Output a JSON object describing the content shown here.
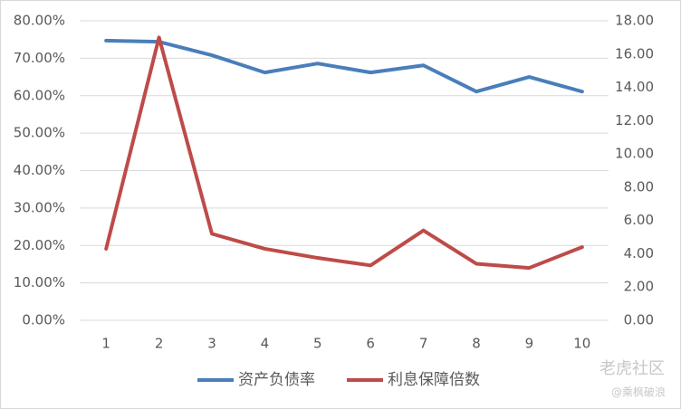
{
  "chart_data": {
    "type": "line",
    "categories": [
      "1",
      "2",
      "3",
      "4",
      "5",
      "6",
      "7",
      "8",
      "9",
      "10"
    ],
    "series": [
      {
        "name": "资产负债率",
        "color": "#4a7ebb",
        "values": [
          74.7,
          74.4,
          70.8,
          66.2,
          68.6,
          66.2,
          68.1,
          61.1,
          65.0,
          61.1
        ]
      },
      {
        "name": "利息保障倍数",
        "color": "#be4b48",
        "axis": "y2",
        "values": [
          4.3,
          17.0,
          5.2,
          4.3,
          3.75,
          3.3,
          5.4,
          3.4,
          3.15,
          4.4
        ]
      }
    ],
    "ylim": [
      0,
      80
    ],
    "yticks": [
      {
        "value": 0,
        "label": "0.00%"
      },
      {
        "value": 10,
        "label": "10.00%"
      },
      {
        "value": 20,
        "label": "20.00%"
      },
      {
        "value": 30,
        "label": "30.00%"
      },
      {
        "value": 40,
        "label": "40.00%"
      },
      {
        "value": 50,
        "label": "50.00%"
      },
      {
        "value": 60,
        "label": "60.00%"
      },
      {
        "value": 70,
        "label": "70.00%"
      },
      {
        "value": 80,
        "label": "80.00%"
      }
    ],
    "y2lim": [
      0,
      18
    ],
    "y2ticks": [
      {
        "value": 0,
        "label": "0.00"
      },
      {
        "value": 2,
        "label": "2.00"
      },
      {
        "value": 4,
        "label": "4.00"
      },
      {
        "value": 6,
        "label": "6.00"
      },
      {
        "value": 8,
        "label": "8.00"
      },
      {
        "value": 10,
        "label": "10.00"
      },
      {
        "value": 12,
        "label": "12.00"
      },
      {
        "value": 14,
        "label": "14.00"
      },
      {
        "value": 16,
        "label": "16.00"
      },
      {
        "value": 18,
        "label": "18.00"
      }
    ],
    "grid": true,
    "legend": "bottom",
    "watermark": [
      "老虎社区",
      "@乘枫破浪"
    ]
  }
}
